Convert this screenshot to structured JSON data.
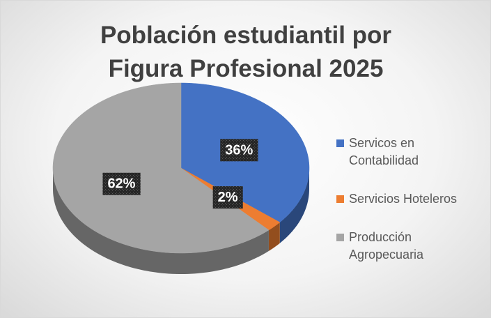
{
  "chart_data": {
    "type": "pie",
    "title": "Población estudiantil por Figura Profesional 2025",
    "categories": [
      "Servicos en Contabilidad",
      "Servicios Hoteleros",
      "Producción Agropecuaria"
    ],
    "values": [
      36,
      2,
      62
    ],
    "value_labels": [
      "36%",
      "2%",
      "62%"
    ],
    "colors": [
      "#4472c4",
      "#ed7d31",
      "#a5a5a5"
    ],
    "legend": "right"
  }
}
